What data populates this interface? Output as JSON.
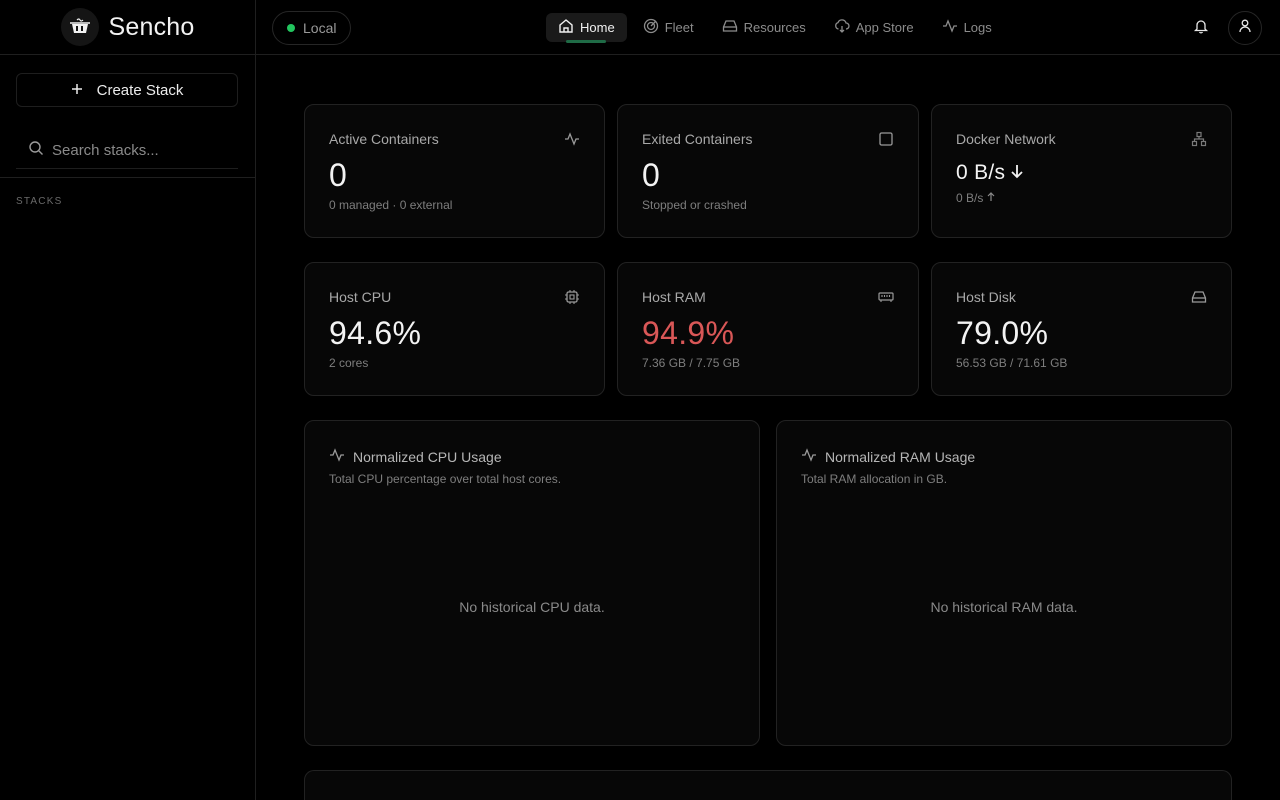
{
  "brand": {
    "name": "Sencho"
  },
  "sidebar": {
    "create_label": "Create Stack",
    "search_placeholder": "Search stacks...",
    "stacks_label": "STACKS"
  },
  "topbar": {
    "node_label": "Local",
    "nav": [
      {
        "label": "Home",
        "icon": "home-icon",
        "active": true
      },
      {
        "label": "Fleet",
        "icon": "radar-icon"
      },
      {
        "label": "Resources",
        "icon": "hard-drive-icon"
      },
      {
        "label": "App Store",
        "icon": "cloud-download-icon"
      },
      {
        "label": "Logs",
        "icon": "activity-icon"
      }
    ]
  },
  "stats": {
    "active": {
      "title": "Active Containers",
      "value": "0",
      "sub": "0 managed · 0 external"
    },
    "exited": {
      "title": "Exited Containers",
      "value": "0",
      "sub": "Stopped or crashed"
    },
    "network": {
      "title": "Docker Network",
      "value": "0 B/s",
      "sub": "0 B/s"
    },
    "cpu": {
      "title": "Host CPU",
      "value": "94.6%",
      "sub": "2 cores"
    },
    "ram": {
      "title": "Host RAM",
      "value": "94.9%",
      "sub": "7.36 GB / 7.75 GB"
    },
    "disk": {
      "title": "Host Disk",
      "value": "79.0%",
      "sub": "56.53 GB / 71.61 GB"
    }
  },
  "charts": {
    "cpu": {
      "title": "Normalized CPU Usage",
      "desc": "Total CPU percentage over total host cores.",
      "empty": "No historical CPU data."
    },
    "ram": {
      "title": "Normalized RAM Usage",
      "desc": "Total RAM allocation in GB.",
      "empty": "No historical RAM data."
    }
  },
  "colors": {
    "danger": "#d95757",
    "online": "#22c55e",
    "active_underline": "#1f6b46"
  }
}
